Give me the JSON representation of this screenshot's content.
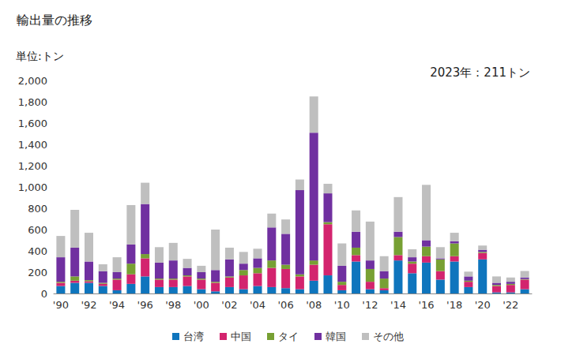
{
  "chart_data": {
    "type": "bar",
    "title": "輸出量の推移",
    "y_label": "単位:トン",
    "annotation": "2023年：211トン",
    "stacked": true,
    "grid": false,
    "legend": "bottom",
    "categories": [
      "'90",
      null,
      "'92",
      null,
      "'94",
      null,
      "'96",
      null,
      "'98",
      null,
      "'00",
      null,
      "'02",
      null,
      "'04",
      null,
      "'06",
      null,
      "'08",
      null,
      "'10",
      null,
      "'12",
      null,
      "'14",
      null,
      "'16",
      null,
      "'18",
      null,
      "'20",
      null,
      "'22",
      null
    ],
    "series": [
      {
        "name": "台湾",
        "color": "#0f75bd",
        "values": [
          70,
          100,
          100,
          70,
          30,
          90,
          160,
          60,
          60,
          70,
          40,
          20,
          60,
          40,
          70,
          60,
          50,
          40,
          120,
          170,
          30,
          300,
          40,
          30,
          310,
          190,
          290,
          130,
          300,
          60,
          320,
          10,
          10,
          40
        ]
      },
      {
        "name": "中国",
        "color": "#d3246e",
        "values": [
          30,
          20,
          15,
          20,
          100,
          90,
          170,
          70,
          70,
          90,
          90,
          80,
          90,
          130,
          120,
          180,
          180,
          120,
          150,
          480,
          50,
          60,
          70,
          20,
          50,
          90,
          60,
          80,
          50,
          50,
          60,
          60,
          70,
          90
        ]
      },
      {
        "name": "タイ",
        "color": "#77a033",
        "values": [
          10,
          40,
          10,
          10,
          10,
          100,
          40,
          10,
          10,
          10,
          10,
          10,
          10,
          50,
          50,
          70,
          40,
          20,
          40,
          20,
          30,
          70,
          120,
          90,
          170,
          20,
          90,
          110,
          120,
          10,
          10,
          10,
          10,
          5
        ]
      },
      {
        "name": "韓国",
        "color": "#7030a0",
        "values": [
          230,
          270,
          175,
          110,
          60,
          180,
          470,
          150,
          170,
          70,
          60,
          110,
          160,
          60,
          90,
          310,
          290,
          790,
          1200,
          270,
          150,
          150,
          80,
          70,
          50,
          40,
          60,
          10,
          20,
          40,
          20,
          20,
          20,
          15
        ]
      },
      {
        "name": "その他",
        "color": "#bfbfbf",
        "values": [
          200,
          355,
          270,
          65,
          140,
          370,
          200,
          145,
          165,
          85,
          60,
          380,
          110,
          110,
          90,
          130,
          135,
          100,
          340,
          90,
          210,
          200,
          365,
          140,
          325,
          75,
          520,
          105,
          80,
          45,
          40,
          60,
          40,
          61
        ]
      }
    ],
    "ylim": [
      0,
      2000
    ],
    "yticks": [
      0,
      200,
      400,
      600,
      800,
      {
        "value": 1000,
        "label": "1,000"
      },
      {
        "value": 1200,
        "label": "1,200"
      },
      {
        "value": 1400,
        "label": "1,400"
      },
      {
        "value": 1600,
        "label": "1,600"
      },
      {
        "value": 1800,
        "label": "1,800"
      },
      {
        "value": 2000,
        "label": "2,000"
      }
    ]
  }
}
